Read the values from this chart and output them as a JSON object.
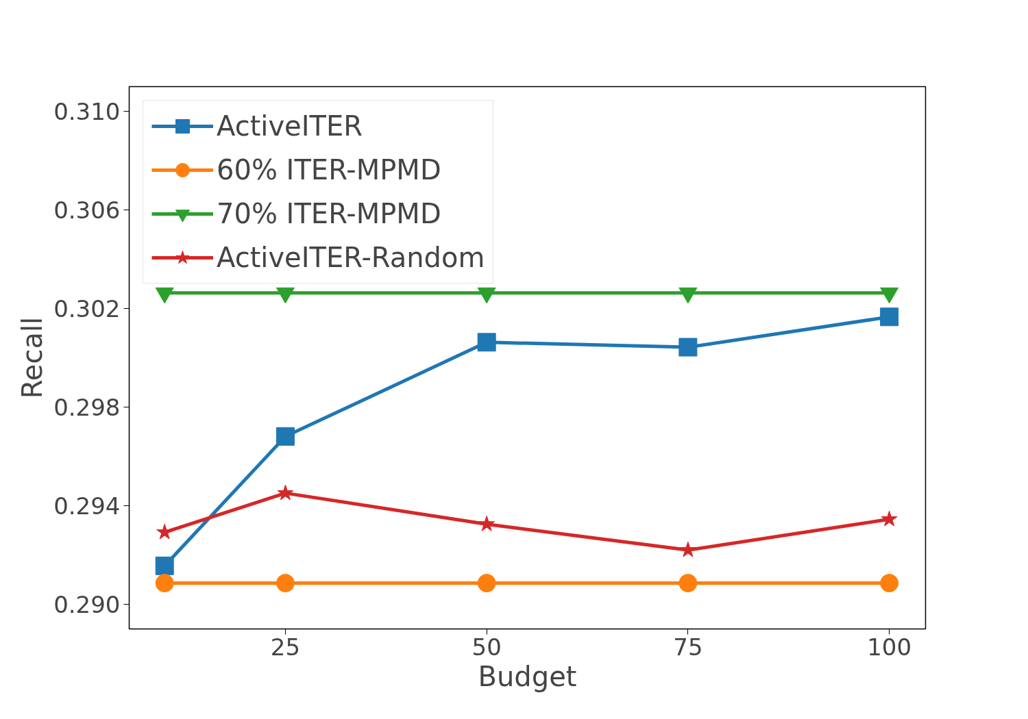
{
  "chart_data": {
    "type": "line",
    "xlabel": "Budget",
    "ylabel": "Recall",
    "x": [
      10,
      25,
      50,
      75,
      100
    ],
    "series": [
      {
        "name": "ActiveITER",
        "color": "#1f77b4",
        "marker": "square",
        "values": [
          0.29156,
          0.29681,
          0.30063,
          0.30043,
          0.30166
        ]
      },
      {
        "name": "60% ITER-MPMD",
        "color": "#ff7f0e",
        "marker": "circle",
        "values": [
          0.29086,
          0.29086,
          0.29086,
          0.29086,
          0.29086
        ]
      },
      {
        "name": "70% ITER-MPMD",
        "color": "#2ca02c",
        "marker": "triangle_down",
        "values": [
          0.30263,
          0.30263,
          0.30263,
          0.30263,
          0.30263
        ]
      },
      {
        "name": "ActiveITER-Random",
        "color": "#d62728",
        "marker": "star",
        "values": [
          0.29292,
          0.29451,
          0.29325,
          0.2922,
          0.29345
        ]
      }
    ],
    "xlim": [
      5.6,
      104.5
    ],
    "ylim": [
      0.289,
      0.311
    ],
    "xticks": [
      25,
      50,
      75,
      100
    ],
    "yticks": [
      {
        "value": 0.29,
        "label": "0.290"
      },
      {
        "value": 0.294,
        "label": "0.294"
      },
      {
        "value": 0.298,
        "label": "0.298"
      },
      {
        "value": 0.302,
        "label": "0.302"
      },
      {
        "value": 0.306,
        "label": "0.306"
      },
      {
        "value": 0.31,
        "label": "0.310"
      }
    ],
    "grid": false,
    "legend": "top left",
    "line_style": "solid"
  }
}
